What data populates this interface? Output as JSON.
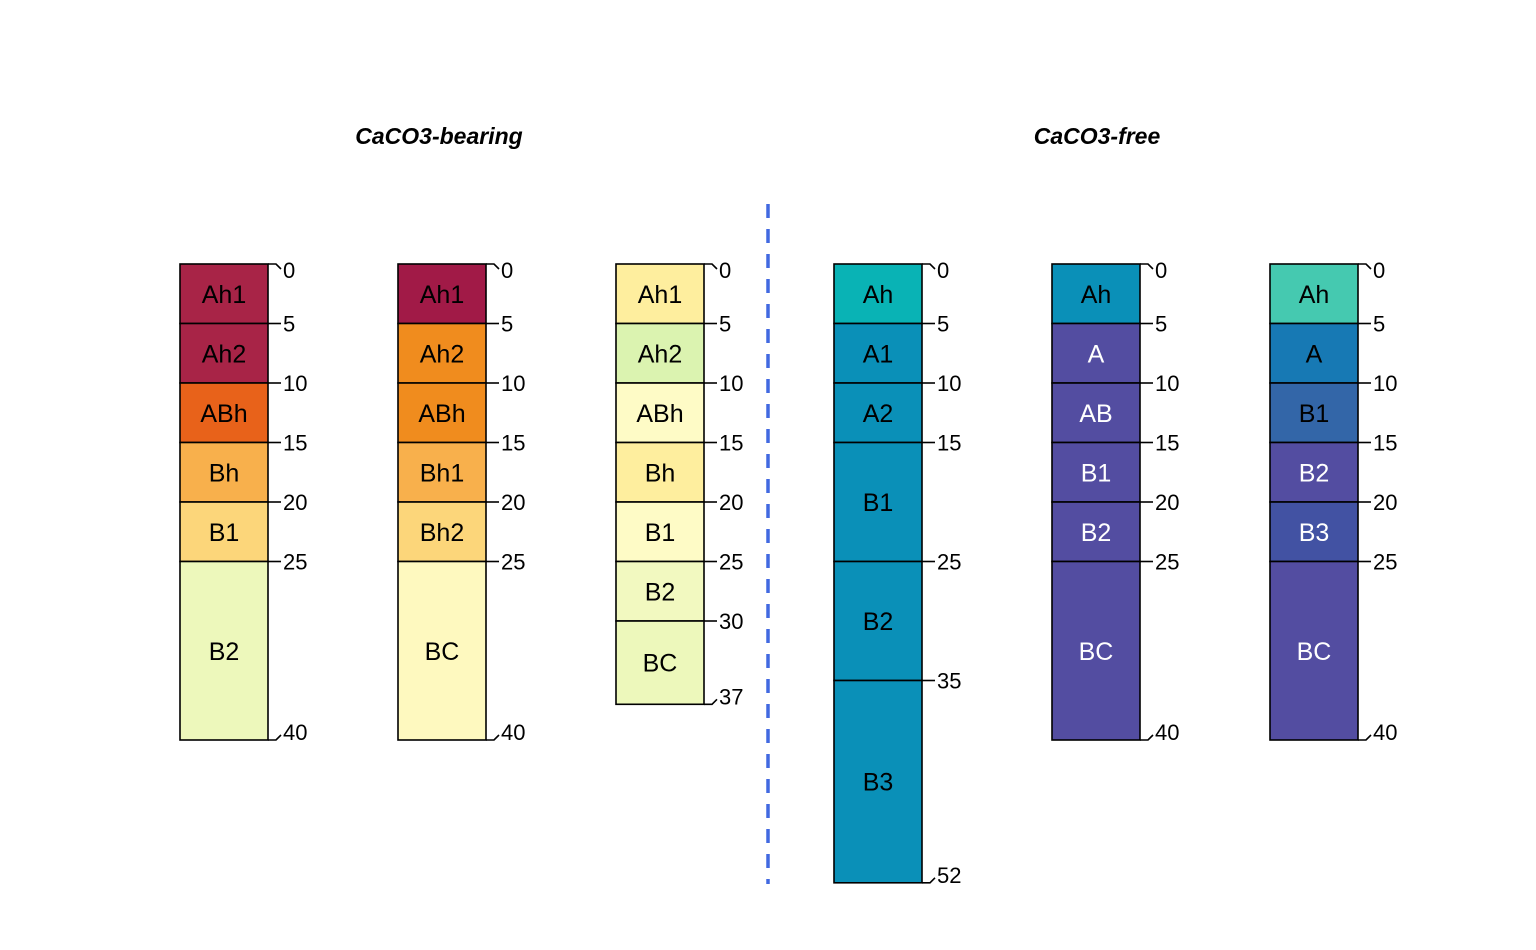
{
  "groups": [
    {
      "title": "CaCO3-bearing"
    },
    {
      "title": "CaCO3-free"
    }
  ],
  "chart_data": {
    "type": "soil-profile-sketch",
    "depth_unit_note": "",
    "max_depth": 52,
    "profiles": [
      {
        "group": 0,
        "depth_ticks": [
          0,
          5,
          10,
          15,
          20,
          25,
          40
        ],
        "horizons": [
          {
            "name": "Ah1",
            "top": 0,
            "bottom": 5,
            "color": "#A82447",
            "text_color": "#000000"
          },
          {
            "name": "Ah2",
            "top": 5,
            "bottom": 10,
            "color": "#A82447",
            "text_color": "#000000"
          },
          {
            "name": "ABh",
            "top": 10,
            "bottom": 15,
            "color": "#E8621A",
            "text_color": "#000000"
          },
          {
            "name": "Bh",
            "top": 15,
            "bottom": 20,
            "color": "#F8B04C",
            "text_color": "#000000"
          },
          {
            "name": "B1",
            "top": 20,
            "bottom": 25,
            "color": "#FCD67A",
            "text_color": "#000000"
          },
          {
            "name": "B2",
            "top": 25,
            "bottom": 40,
            "color": "#EDF8BB",
            "text_color": "#000000"
          }
        ]
      },
      {
        "group": 0,
        "depth_ticks": [
          0,
          5,
          10,
          15,
          20,
          25,
          40
        ],
        "horizons": [
          {
            "name": "Ah1",
            "top": 0,
            "bottom": 5,
            "color": "#A11A47",
            "text_color": "#000000"
          },
          {
            "name": "Ah2",
            "top": 5,
            "bottom": 10,
            "color": "#F08C1E",
            "text_color": "#000000"
          },
          {
            "name": "ABh",
            "top": 10,
            "bottom": 15,
            "color": "#F08C1E",
            "text_color": "#000000"
          },
          {
            "name": "Bh1",
            "top": 15,
            "bottom": 20,
            "color": "#F8B04C",
            "text_color": "#000000"
          },
          {
            "name": "Bh2",
            "top": 20,
            "bottom": 25,
            "color": "#FCD67A",
            "text_color": "#000000"
          },
          {
            "name": "BC",
            "top": 25,
            "bottom": 40,
            "color": "#FEF9BF",
            "text_color": "#000000"
          }
        ]
      },
      {
        "group": 0,
        "depth_ticks": [
          0,
          5,
          10,
          15,
          20,
          25,
          30,
          37
        ],
        "horizons": [
          {
            "name": "Ah1",
            "top": 0,
            "bottom": 5,
            "color": "#FEEE9E",
            "text_color": "#000000"
          },
          {
            "name": "Ah2",
            "top": 5,
            "bottom": 10,
            "color": "#DBF3B0",
            "text_color": "#000000"
          },
          {
            "name": "ABh",
            "top": 10,
            "bottom": 15,
            "color": "#FEFBC6",
            "text_color": "#000000"
          },
          {
            "name": "Bh",
            "top": 15,
            "bottom": 20,
            "color": "#FEEE9E",
            "text_color": "#000000"
          },
          {
            "name": "B1",
            "top": 20,
            "bottom": 25,
            "color": "#FEFBC6",
            "text_color": "#000000"
          },
          {
            "name": "B2",
            "top": 25,
            "bottom": 30,
            "color": "#F2F9C0",
            "text_color": "#000000"
          },
          {
            "name": "BC",
            "top": 30,
            "bottom": 37,
            "color": "#EDF8BB",
            "text_color": "#000000"
          }
        ]
      },
      {
        "group": 1,
        "depth_ticks": [
          0,
          5,
          10,
          15,
          25,
          35,
          52
        ],
        "horizons": [
          {
            "name": "Ah",
            "top": 0,
            "bottom": 5,
            "color": "#09B3B5",
            "text_color": "#000000"
          },
          {
            "name": "A1",
            "top": 5,
            "bottom": 10,
            "color": "#0A90B8",
            "text_color": "#000000"
          },
          {
            "name": "A2",
            "top": 10,
            "bottom": 15,
            "color": "#0A90B8",
            "text_color": "#000000"
          },
          {
            "name": "B1",
            "top": 15,
            "bottom": 25,
            "color": "#0A90B8",
            "text_color": "#000000"
          },
          {
            "name": "B2",
            "top": 25,
            "bottom": 35,
            "color": "#0A90B8",
            "text_color": "#000000"
          },
          {
            "name": "B3",
            "top": 35,
            "bottom": 52,
            "color": "#0A90B8",
            "text_color": "#000000"
          }
        ]
      },
      {
        "group": 1,
        "depth_ticks": [
          0,
          5,
          10,
          15,
          20,
          25,
          40
        ],
        "horizons": [
          {
            "name": "Ah",
            "top": 0,
            "bottom": 5,
            "color": "#0A90B8",
            "text_color": "#000000"
          },
          {
            "name": "A",
            "top": 5,
            "bottom": 10,
            "color": "#534DA1",
            "text_color": "#FFFFFF"
          },
          {
            "name": "AB",
            "top": 10,
            "bottom": 15,
            "color": "#534DA1",
            "text_color": "#FFFFFF"
          },
          {
            "name": "B1",
            "top": 15,
            "bottom": 20,
            "color": "#534DA1",
            "text_color": "#FFFFFF"
          },
          {
            "name": "B2",
            "top": 20,
            "bottom": 25,
            "color": "#534DA1",
            "text_color": "#FFFFFF"
          },
          {
            "name": "BC",
            "top": 25,
            "bottom": 40,
            "color": "#534DA1",
            "text_color": "#FFFFFF"
          }
        ]
      },
      {
        "group": 1,
        "depth_ticks": [
          0,
          5,
          10,
          15,
          20,
          25,
          40
        ],
        "horizons": [
          {
            "name": "Ah",
            "top": 0,
            "bottom": 5,
            "color": "#45C9B0",
            "text_color": "#000000"
          },
          {
            "name": "A",
            "top": 5,
            "bottom": 10,
            "color": "#1779B4",
            "text_color": "#000000"
          },
          {
            "name": "B1",
            "top": 10,
            "bottom": 15,
            "color": "#3366A8",
            "text_color": "#000000"
          },
          {
            "name": "B2",
            "top": 15,
            "bottom": 20,
            "color": "#534DA1",
            "text_color": "#FFFFFF"
          },
          {
            "name": "B3",
            "top": 20,
            "bottom": 25,
            "color": "#4252A3",
            "text_color": "#FFFFFF"
          },
          {
            "name": "BC",
            "top": 25,
            "bottom": 40,
            "color": "#534DA1",
            "text_color": "#FFFFFF"
          }
        ]
      }
    ],
    "group_separator": {
      "style": "dashed",
      "color": "#4169E1"
    }
  }
}
